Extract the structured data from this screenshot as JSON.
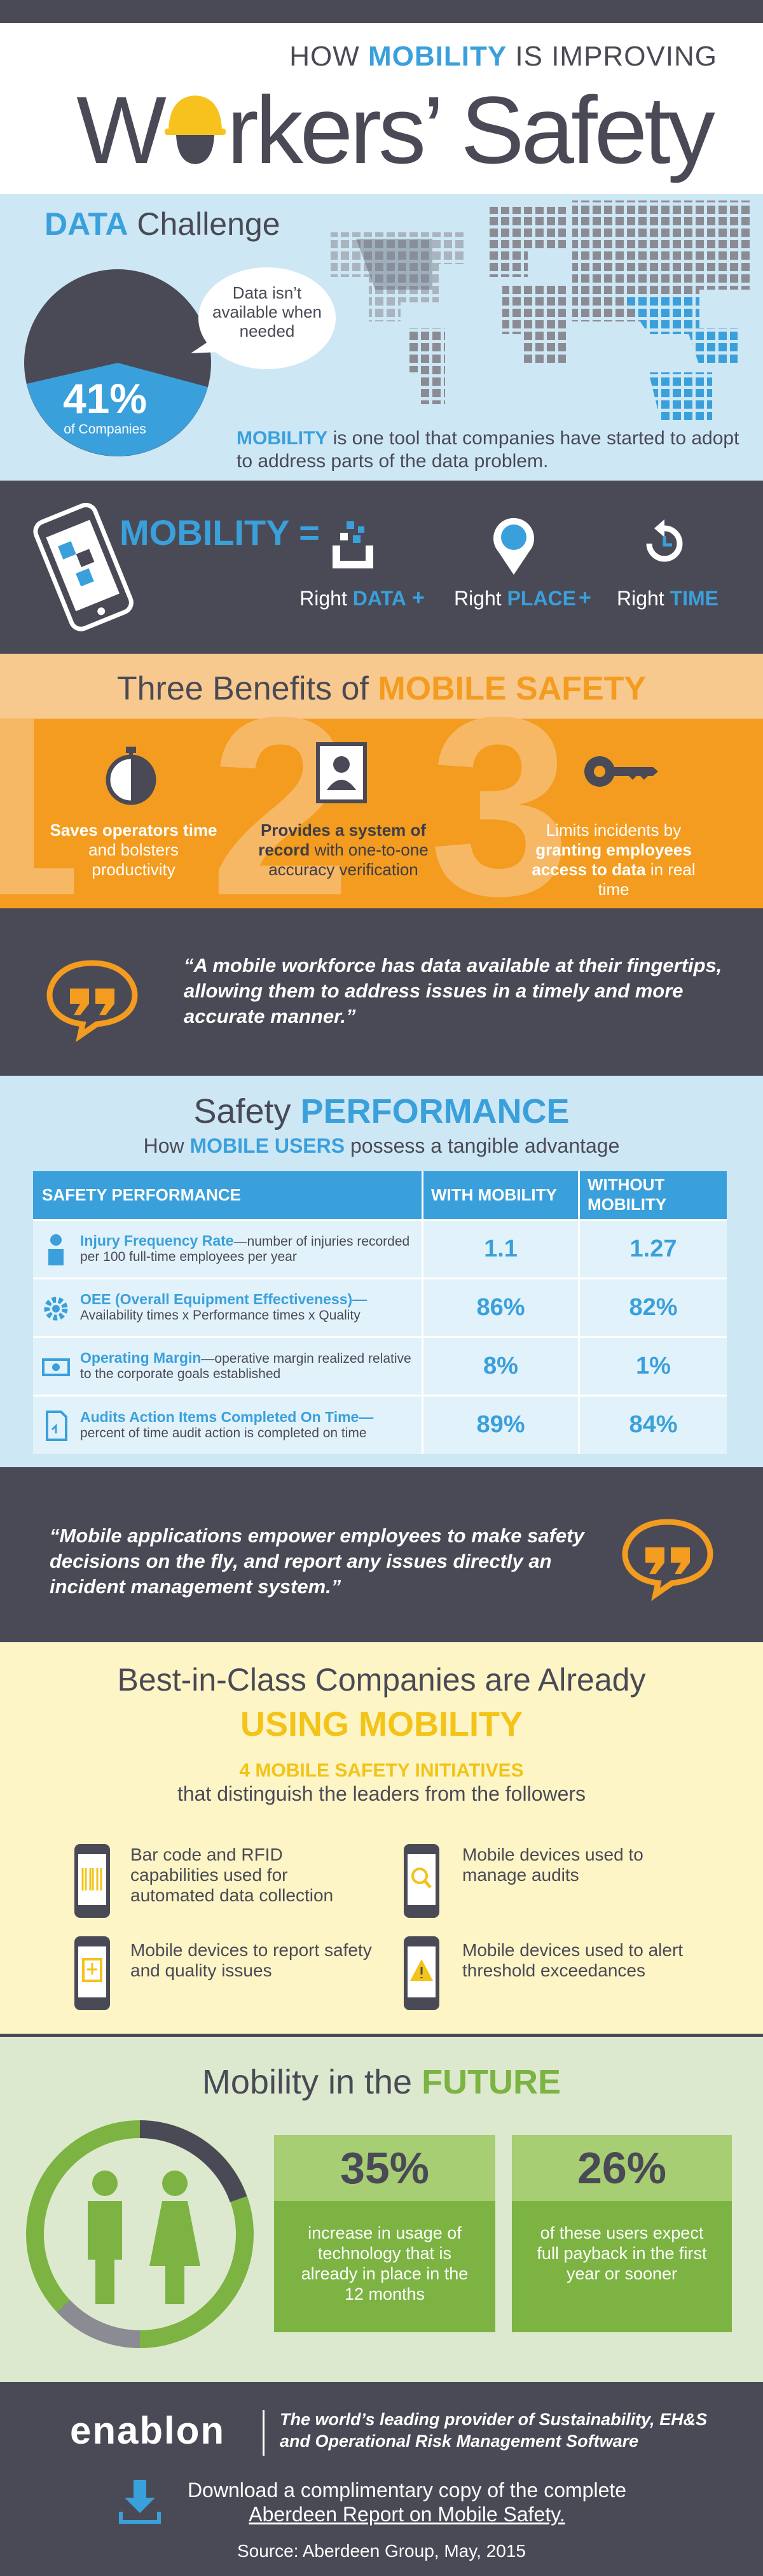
{
  "header": {
    "title_top": [
      "HOW",
      "MOBILITY",
      "IS IMPROVING"
    ],
    "title_main": [
      "W",
      "rkers’ Safety"
    ]
  },
  "data_challenge": {
    "title": [
      "DATA",
      "Challenge"
    ],
    "bubble": "Data isn’t available when needed",
    "stat": "41%",
    "stat_label": "of Companies",
    "text": [
      "MOBILITY",
      "is one tool that companies have started to adopt to address parts of the data problem."
    ]
  },
  "mobility": {
    "title": "MOBILITY =",
    "operator": "+",
    "items": [
      {
        "prefix": "Right",
        "highlight": "DATA"
      },
      {
        "prefix": "Right",
        "highlight": "PLACE"
      },
      {
        "prefix": "Right",
        "highlight": "TIME"
      }
    ]
  },
  "benefits": {
    "title": [
      "Three Benefits of",
      "MOBILE SAFETY"
    ],
    "items": [
      {
        "number": "1",
        "segments": [
          {
            "text": "Saves operators time",
            "bold": true
          },
          {
            "text": "and bolsters productivity",
            "bold": false
          }
        ]
      },
      {
        "number": "2",
        "segments": [
          {
            "text": "Provides a system of record",
            "bold": true
          },
          {
            "text": "with one-to-one accuracy verification",
            "bold": false
          }
        ]
      },
      {
        "number": "3",
        "segments": [
          {
            "text": "Limits incidents by",
            "bold": false
          },
          {
            "text": "granting employees access to data",
            "bold": true
          },
          {
            "text": "in real time",
            "bold": false
          }
        ]
      }
    ]
  },
  "quote_1": "“A mobile workforce has data available at their fingertips, allowing them to address issues in a timely and more accurate manner.”",
  "safety_performance": {
    "title": [
      "Safety",
      "PERFORMANCE"
    ],
    "subtitle": [
      "How",
      "MOBILE USERS",
      "possess a tangible advantage"
    ],
    "table": {
      "header": [
        "SAFETY PERFORMANCE",
        "WITH MOBILITY",
        "WITHOUT MOBILITY"
      ],
      "rows": [
        {
          "name": "Injury Frequency Rate",
          "description": "—number of injuries recorded per 100 full-time employees per year",
          "with": "1.1",
          "without": "1.27"
        },
        {
          "name": "OEE (Overall Equipment Effectiveness)—",
          "description": "Availability times x Performance times x Quality",
          "with": "86%",
          "without": "82%"
        },
        {
          "name": "Operating Margin",
          "description": "—operative margin realized relative to the corporate goals established",
          "with": "8%",
          "without": "1%"
        },
        {
          "name": "Audits Action Items Completed On Time—",
          "description": "percent of time audit action is completed on time",
          "with": "89%",
          "without": "84%"
        }
      ]
    }
  },
  "quote_2": "“Mobile applications empower employees to make safety decisions on the fly, and report any issues directly an incident management system.”",
  "best_in_class": {
    "title": "Best-in-Class Companies are Already",
    "highlight": "USING MOBILITY",
    "subtitle": "4 MOBILE SAFETY INITIATIVES",
    "subtitle_2": "that distinguish the leaders from the followers",
    "items": [
      "Bar code and RFID capabilities used for automated data collection",
      "Mobile devices used to manage audits",
      "Mobile devices to report safety and quality issues",
      "Mobile devices used to alert threshold exceedances"
    ]
  },
  "future": {
    "title": [
      "Mobility in the",
      "FUTURE"
    ],
    "stats": [
      {
        "value": "35%",
        "text": "increase in usage of technology that is already in place in the 12 months"
      },
      {
        "value": "26%",
        "text": "of these users expect full payback in the first year or sooner"
      }
    ]
  },
  "footer": {
    "brand": "enablon",
    "tagline": "The world’s leading provider of Sustainability, EH&S and Operational Risk Management Software",
    "download_text": "Download a complimentary copy of the complete",
    "download_link": "Aberdeen Report on Mobile Safety.",
    "source": "Source: Aberdeen Group, May, 2015"
  }
}
